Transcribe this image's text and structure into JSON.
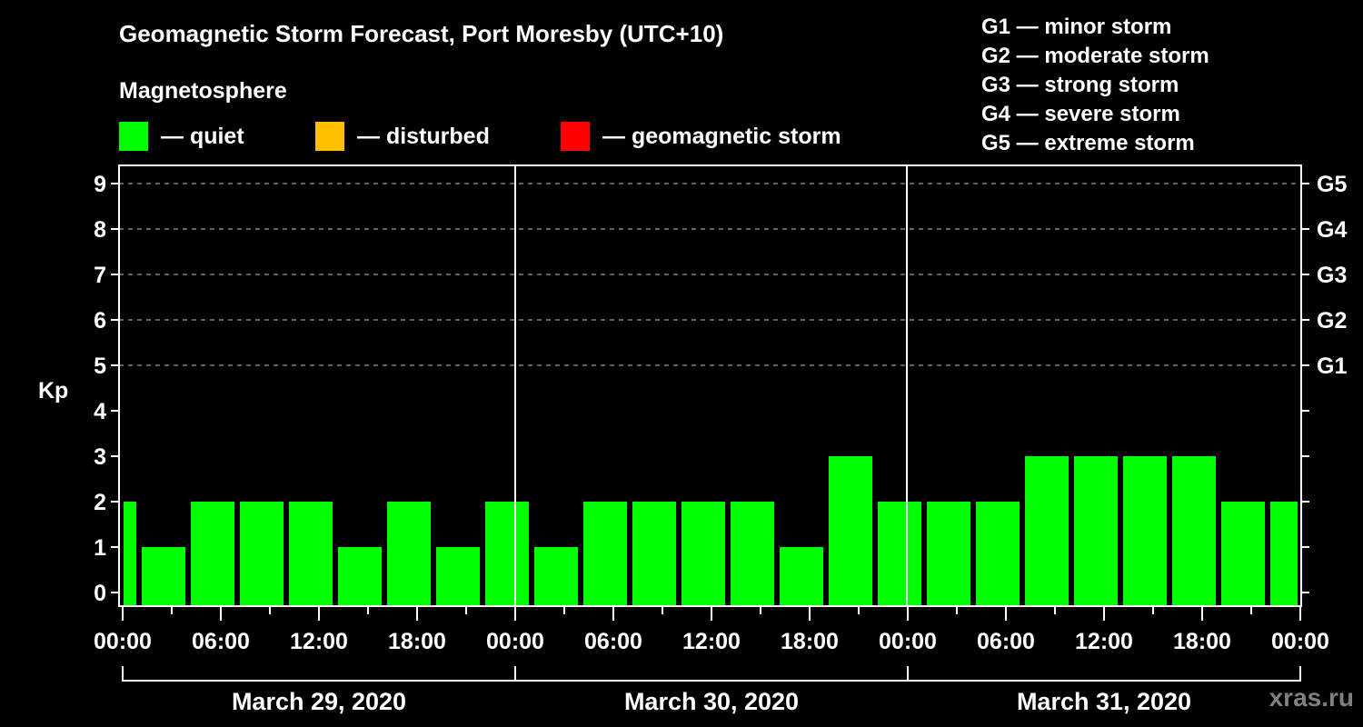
{
  "chart_data": {
    "type": "bar",
    "title": "Geomagnetic Storm Forecast, Port Moresby (UTC+10)",
    "subtitle": "Magnetosphere",
    "xlabel": "",
    "ylabel": "Kp",
    "ylim": [
      0,
      9
    ],
    "yticks": [
      0,
      1,
      2,
      3,
      4,
      5,
      6,
      7,
      8,
      9
    ],
    "right_ticks": [
      {
        "kp": 5,
        "label": "G1"
      },
      {
        "kp": 6,
        "label": "G2"
      },
      {
        "kp": 7,
        "label": "G3"
      },
      {
        "kp": 8,
        "label": "G4"
      },
      {
        "kp": 9,
        "label": "G5"
      }
    ],
    "grid": "dashed horizontal at Kp 5-9",
    "xtick_labels": [
      "00:00",
      "06:00",
      "12:00",
      "18:00",
      "00:00",
      "06:00",
      "12:00",
      "18:00",
      "00:00",
      "06:00",
      "12:00",
      "18:00",
      "00:00"
    ],
    "days": [
      "March 29, 2020",
      "March 30, 2020",
      "March 31, 2020"
    ],
    "interval_hours": 3,
    "note": "bars centered at 1.5h offsets; first and last bars are partial (clipped at plot edges)",
    "categories": [
      "Mar29 00:00",
      "Mar29 01:30",
      "Mar29 04:30",
      "Mar29 07:30",
      "Mar29 10:30",
      "Mar29 13:30",
      "Mar29 16:30",
      "Mar29 19:30",
      "Mar29 22:30",
      "Mar30 01:30",
      "Mar30 04:30",
      "Mar30 07:30",
      "Mar30 10:30",
      "Mar30 13:30",
      "Mar30 16:30",
      "Mar30 19:30",
      "Mar30 22:30",
      "Mar31 01:30",
      "Mar31 04:30",
      "Mar31 07:30",
      "Mar31 10:30",
      "Mar31 13:30",
      "Mar31 16:30",
      "Mar31 19:30",
      "Mar31 22:30"
    ],
    "values": [
      2,
      1,
      2,
      2,
      2,
      1,
      2,
      1,
      2,
      1,
      2,
      2,
      2,
      2,
      1,
      3,
      2,
      2,
      2,
      3,
      3,
      3,
      3,
      2,
      2
    ],
    "legend": [
      {
        "label": "— quiet",
        "color": "#00ff00"
      },
      {
        "label": "— disturbed",
        "color": "#ffbf00"
      },
      {
        "label": "— geomagnetic storm",
        "color": "#ff0000"
      }
    ]
  },
  "header": {
    "title": "Geomagnetic Storm Forecast, Port Moresby (UTC+10)",
    "subtitle": "Magnetosphere"
  },
  "legend": {
    "quiet": "— quiet",
    "disturbed": "— disturbed",
    "storm": "— geomagnetic storm"
  },
  "g_scale": [
    "G1 — minor storm",
    "G2 — moderate storm",
    "G3 — strong storm",
    "G4 — severe storm",
    "G5 — extreme storm"
  ],
  "colors": {
    "quiet": "#00ff00",
    "disturbed": "#ffbf00",
    "storm": "#ff0000",
    "grid": "#808080",
    "watermark": "#808080"
  },
  "watermark": "xras.ru"
}
